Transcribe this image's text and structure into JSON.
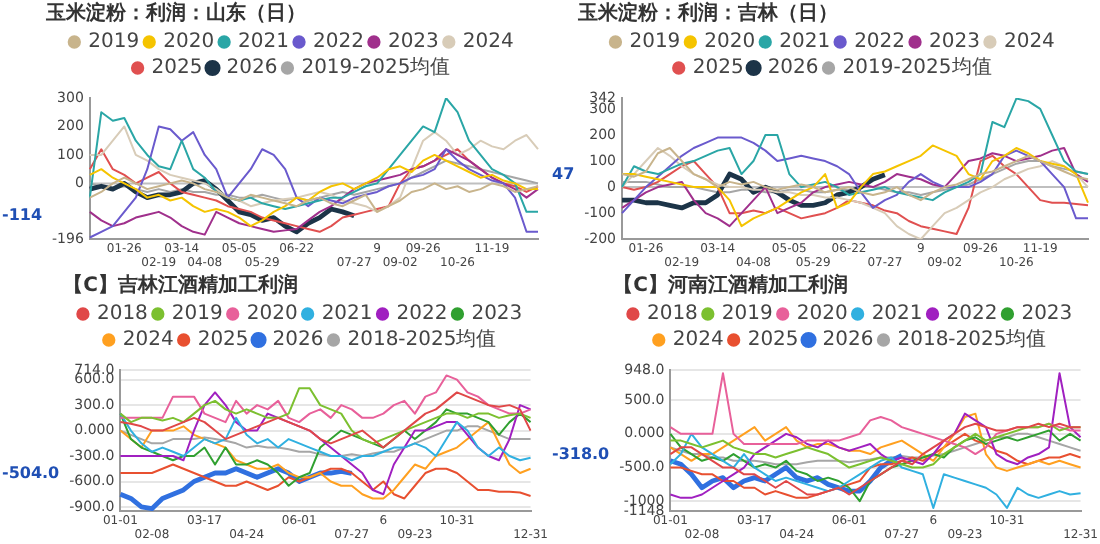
{
  "chart_data": [
    {
      "type": "line",
      "title": "玉米淀粉：利润：山东（日）",
      "legend": "top",
      "grid": false,
      "marker": "none",
      "categories": [
        null,
        null,
        null,
        "01-26",
        null,
        null,
        "02-19",
        null,
        "03-14",
        null,
        "04-08",
        null,
        null,
        "05-05",
        null,
        "05-29",
        null,
        null,
        "06-22",
        null,
        null,
        null,
        null,
        "07-27",
        null,
        "9",
        null,
        "09-02",
        null,
        "09-26",
        null,
        null,
        "10-26",
        null,
        null,
        "11-19",
        null,
        null,
        null,
        null
      ],
      "ylim": [
        -196,
        300
      ],
      "yticks": [
        300,
        200,
        100,
        0,
        -196
      ],
      "ref_lines": [
        {
          "axis": "y",
          "value": 0,
          "color": "#bfbfbf"
        }
      ],
      "annotations": [
        "-114"
      ],
      "series": [
        {
          "name": "2019",
          "color": "#c8b48c",
          "values": [
            -50,
            -30,
            0,
            20,
            0,
            -20,
            -10,
            0,
            10,
            0,
            -20,
            -30,
            -50,
            -60,
            -40,
            -50,
            -60,
            -70,
            -80,
            -60,
            -50,
            -70,
            -80,
            -60,
            -40,
            -100,
            -80,
            -60,
            -30,
            -20,
            0,
            -20,
            -10,
            -30,
            -20,
            0,
            -10,
            -30,
            -20,
            -10
          ]
        },
        {
          "name": "2020",
          "color": "#f5c400",
          "values": [
            30,
            50,
            20,
            0,
            -20,
            -50,
            -40,
            -60,
            -50,
            -80,
            -100,
            -90,
            -100,
            -120,
            -150,
            -130,
            -100,
            -80,
            -50,
            -60,
            -30,
            -10,
            0,
            -20,
            0,
            20,
            50,
            60,
            40,
            80,
            100,
            80,
            60,
            40,
            20,
            30,
            10,
            0,
            -20,
            -20
          ]
        },
        {
          "name": "2021",
          "color": "#2aa6a6",
          "values": [
            -50,
            250,
            220,
            230,
            150,
            100,
            60,
            50,
            150,
            50,
            20,
            -30,
            -50,
            -60,
            -50,
            -70,
            -80,
            -90,
            -80,
            -70,
            -60,
            -50,
            -50,
            -30,
            -10,
            0,
            50,
            100,
            150,
            200,
            180,
            300,
            250,
            150,
            100,
            50,
            30,
            0,
            -100,
            -100
          ]
        },
        {
          "name": "2022",
          "color": "#6a5acd",
          "values": [
            -190,
            -170,
            -150,
            -100,
            -50,
            50,
            200,
            190,
            150,
            180,
            100,
            50,
            -50,
            0,
            50,
            120,
            100,
            50,
            -50,
            -80,
            -50,
            -60,
            -70,
            -50,
            -40,
            -30,
            -10,
            0,
            20,
            30,
            50,
            120,
            80,
            50,
            30,
            10,
            0,
            -50,
            -170,
            -170
          ]
        },
        {
          "name": "2023",
          "color": "#a0308c",
          "values": [
            -100,
            -130,
            -150,
            -140,
            -120,
            -110,
            -100,
            -120,
            -150,
            -170,
            -180,
            -100,
            -120,
            -140,
            -150,
            -160,
            -170,
            -165,
            -160,
            -130,
            -100,
            -80,
            -50,
            -20,
            0,
            10,
            20,
            30,
            50,
            60,
            80,
            120,
            100,
            80,
            50,
            20,
            0,
            -20,
            -50,
            -20
          ]
        },
        {
          "name": "2024",
          "color": "#d8ccb8",
          "values": [
            100,
            100,
            150,
            200,
            100,
            80,
            50,
            30,
            20,
            10,
            0,
            -20,
            -50,
            -60,
            -80,
            -70,
            -60,
            -55,
            -50,
            -40,
            -30,
            -40,
            -60,
            -70,
            -80,
            -100,
            -80,
            -50,
            50,
            150,
            180,
            150,
            100,
            120,
            150,
            130,
            120,
            150,
            170,
            120
          ]
        },
        {
          "name": "2025",
          "color": "#e05050",
          "values": [
            50,
            120,
            50,
            30,
            0,
            20,
            40,
            0,
            -30,
            -40,
            -50,
            -60,
            -80,
            -90,
            -100,
            -120,
            -130,
            -140,
            -150,
            -160,
            -170,
            -150,
            -120,
            -110,
            -100,
            -90,
            -80,
            0,
            50,
            60,
            80,
            100,
            120,
            80,
            50,
            20,
            0,
            -10,
            -30,
            -10
          ]
        },
        {
          "name": "2026",
          "color": "#1c3448",
          "values": [
            -20,
            -10,
            -20,
            0,
            -30,
            -50,
            -40,
            -40,
            -30,
            0,
            10,
            -20,
            -60,
            -100,
            -110,
            -130,
            -120,
            -150,
            -170,
            -140,
            -120,
            -90,
            -100,
            -114,
            null,
            null,
            null,
            null,
            null,
            null,
            null,
            null,
            null,
            null,
            null,
            null,
            null,
            null,
            null,
            null
          ]
        },
        {
          "name": "2019-2025均值",
          "color": "#a6a6a6",
          "values": [
            0,
            -10,
            -20,
            -10,
            -20,
            -30,
            -20,
            -30,
            -20,
            -30,
            -30,
            -40,
            -40,
            -50,
            -50,
            -40,
            -50,
            -60,
            -50,
            -60,
            -50,
            -40,
            -30,
            -40,
            -30,
            -20,
            -10,
            0,
            20,
            40,
            60,
            80,
            70,
            60,
            50,
            40,
            30,
            20,
            10,
            0
          ]
        }
      ]
    },
    {
      "type": "line",
      "title": "玉米淀粉：利润：吉林（日）",
      "legend": "top",
      "grid": false,
      "marker": "none",
      "categories": [
        null,
        null,
        "01-26",
        null,
        null,
        "02-19",
        null,
        null,
        "03-14",
        null,
        null,
        "04-08",
        null,
        null,
        "05-05",
        null,
        "05-29",
        null,
        null,
        "06-22",
        null,
        null,
        "07-27",
        null,
        null,
        "9",
        null,
        "09-02",
        null,
        null,
        "09-26",
        null,
        null,
        "10-26",
        null,
        "11-19",
        null,
        null,
        null,
        null
      ],
      "ylim": [
        -200,
        342
      ],
      "yticks": [
        342,
        300,
        200,
        100,
        0,
        -100,
        -200
      ],
      "ref_lines": [
        {
          "axis": "y",
          "value": 0,
          "color": "#bfbfbf"
        }
      ],
      "annotations": [
        "47"
      ],
      "series": [
        {
          "name": "2019",
          "color": "#c8b48c",
          "values": [
            50,
            40,
            60,
            130,
            150,
            100,
            50,
            30,
            0,
            20,
            10,
            20,
            0,
            -10,
            0,
            10,
            0,
            -20,
            -10,
            0,
            -20,
            -30,
            -20,
            0,
            -30,
            -50,
            -20,
            0,
            10,
            30,
            50,
            60,
            80,
            100,
            120,
            100,
            80,
            60,
            40,
            30
          ]
        },
        {
          "name": "2020",
          "color": "#f5c400",
          "values": [
            50,
            50,
            40,
            30,
            20,
            10,
            0,
            0,
            0,
            -50,
            -150,
            -120,
            -100,
            -80,
            -50,
            -20,
            0,
            50,
            -80,
            -60,
            0,
            50,
            60,
            80,
            100,
            120,
            160,
            140,
            120,
            50,
            30,
            100,
            120,
            150,
            130,
            100,
            90,
            80,
            50,
            -60
          ]
        },
        {
          "name": "2021",
          "color": "#2aa6a6",
          "values": [
            0,
            80,
            60,
            50,
            70,
            90,
            100,
            120,
            140,
            150,
            50,
            100,
            200,
            200,
            50,
            0,
            10,
            20,
            0,
            -30,
            -20,
            -10,
            0,
            -20,
            -30,
            -40,
            -50,
            -20,
            0,
            20,
            50,
            250,
            230,
            340,
            330,
            300,
            200,
            100,
            60,
            50
          ]
        },
        {
          "name": "2022",
          "color": "#6a5acd",
          "values": [
            -100,
            -50,
            0,
            40,
            80,
            120,
            150,
            170,
            190,
            190,
            190,
            170,
            140,
            100,
            110,
            120,
            110,
            100,
            80,
            50,
            -20,
            -80,
            -50,
            -30,
            20,
            50,
            20,
            0,
            0,
            0,
            20,
            50,
            120,
            140,
            120,
            100,
            50,
            0,
            -120,
            -120
          ]
        },
        {
          "name": "2023",
          "color": "#a0308c",
          "values": [
            -80,
            -50,
            -20,
            0,
            10,
            20,
            -50,
            -100,
            -120,
            -150,
            -100,
            -50,
            0,
            -100,
            -80,
            -60,
            -20,
            0,
            10,
            20,
            10,
            0,
            20,
            50,
            40,
            30,
            10,
            0,
            50,
            100,
            110,
            130,
            120,
            100,
            110,
            120,
            140,
            150,
            50,
            20
          ]
        },
        {
          "name": "2024",
          "color": "#d8ccb8",
          "values": [
            0,
            50,
            100,
            150,
            120,
            80,
            50,
            30,
            10,
            0,
            0,
            -10,
            -10,
            -20,
            -20,
            -30,
            -30,
            -40,
            -40,
            -50,
            -60,
            -80,
            -100,
            -150,
            -180,
            -200,
            -150,
            -100,
            -80,
            -50,
            -20,
            0,
            30,
            50,
            70,
            80,
            100,
            80,
            50,
            0
          ]
        },
        {
          "name": "2025",
          "color": "#e05050",
          "values": [
            0,
            -10,
            0,
            20,
            50,
            80,
            100,
            50,
            0,
            -100,
            -100,
            -90,
            -100,
            -80,
            -100,
            -120,
            -110,
            -100,
            -80,
            -50,
            -60,
            -70,
            -90,
            -100,
            -130,
            -150,
            -160,
            -170,
            -180,
            -80,
            100,
            120,
            80,
            50,
            0,
            -50,
            -60,
            -60,
            -65,
            -70
          ]
        },
        {
          "name": "2026",
          "color": "#1c3448",
          "values": [
            -50,
            -50,
            -60,
            -60,
            -70,
            -80,
            -60,
            -60,
            -30,
            50,
            30,
            -20,
            0,
            -20,
            -50,
            -70,
            -70,
            -60,
            -30,
            -20,
            0,
            30,
            47,
            null,
            null,
            null,
            null,
            null,
            null,
            null,
            null,
            null,
            null,
            null,
            null,
            null,
            null,
            null,
            null,
            null
          ]
        },
        {
          "name": "2019-2025均值",
          "color": "#a6a6a6",
          "values": [
            20,
            20,
            20,
            10,
            0,
            0,
            0,
            -10,
            -20,
            -20,
            -10,
            -10,
            -20,
            -20,
            -10,
            -10,
            -20,
            -20,
            -10,
            -10,
            0,
            0,
            -10,
            -20,
            -20,
            -30,
            -20,
            -10,
            0,
            10,
            30,
            50,
            70,
            90,
            100,
            100,
            80,
            70,
            60,
            50
          ]
        }
      ]
    },
    {
      "type": "line",
      "title": "【C】吉林江酒精加工利润",
      "legend": "top",
      "grid": "y",
      "marker": "none",
      "categories": [
        "01-01",
        null,
        null,
        "02-08",
        null,
        null,
        null,
        null,
        "03-17",
        null,
        null,
        null,
        "04-24",
        null,
        null,
        null,
        null,
        "06-01",
        null,
        null,
        null,
        null,
        "07-27",
        null,
        null,
        "6",
        null,
        null,
        "09-23",
        null,
        null,
        null,
        "10-31",
        null,
        null,
        null,
        null,
        null,
        null,
        "12-31"
      ],
      "ylim": [
        -950,
        714
      ],
      "yticks": [
        {
          "value": 714,
          "label": "714.0"
        },
        {
          "value": 600,
          "label": "600.0"
        },
        {
          "value": 300,
          "label": "300.0"
        },
        {
          "value": 0,
          "label": "0.000"
        },
        {
          "value": -300,
          "label": "-300.0"
        },
        {
          "value": -600,
          "label": "-600.0"
        },
        {
          "value": -900,
          "label": "-900.0"
        }
      ],
      "annotations": [
        "-504.0"
      ],
      "series": [
        {
          "name": "2018",
          "color": "#e04848",
          "values": [
            100,
            80,
            50,
            0,
            0,
            50,
            100,
            150,
            100,
            0,
            -100,
            -50,
            0,
            50,
            100,
            150,
            100,
            50,
            0,
            -100,
            -150,
            -100,
            -50,
            0,
            -100,
            -200,
            -100,
            0,
            100,
            200,
            250,
            350,
            450,
            400,
            350,
            300,
            280,
            300,
            250,
            0
          ]
        },
        {
          "name": "2019",
          "color": "#7cc030",
          "values": [
            200,
            100,
            150,
            150,
            120,
            150,
            100,
            200,
            300,
            350,
            250,
            200,
            250,
            200,
            150,
            150,
            200,
            500,
            500,
            300,
            250,
            200,
            0,
            -100,
            -150,
            -100,
            -50,
            0,
            50,
            100,
            150,
            200,
            200,
            150,
            200,
            200,
            150,
            180,
            200,
            150
          ]
        },
        {
          "name": "2020",
          "color": "#e8609a",
          "values": [
            150,
            150,
            150,
            150,
            150,
            400,
            400,
            400,
            200,
            150,
            100,
            350,
            200,
            300,
            250,
            350,
            150,
            100,
            200,
            250,
            150,
            300,
            250,
            150,
            150,
            200,
            300,
            350,
            200,
            400,
            450,
            650,
            600,
            450,
            400,
            300,
            250,
            200,
            200,
            250
          ]
        },
        {
          "name": "2021",
          "color": "#30b0e0",
          "values": [
            200,
            0,
            -150,
            -250,
            -200,
            -250,
            -300,
            -200,
            -100,
            -150,
            -100,
            150,
            -50,
            -150,
            -100,
            -200,
            -100,
            -150,
            -200,
            -250,
            -300,
            -300,
            -350,
            -300,
            -300,
            -250,
            -200,
            -200,
            -150,
            -200,
            -300,
            -100,
            100,
            0,
            -200,
            -300,
            -200,
            -300,
            -350,
            -320
          ]
        },
        {
          "name": "2022",
          "color": "#a020c0",
          "values": [
            -300,
            -300,
            -300,
            -300,
            -300,
            -300,
            -350,
            0,
            300,
            450,
            300,
            100,
            0,
            0,
            200,
            150,
            100,
            50,
            0,
            -100,
            -200,
            -300,
            -400,
            -500,
            -700,
            -750,
            -400,
            -200,
            0,
            0,
            50,
            100,
            100,
            -50,
            -200,
            -300,
            -350,
            -100,
            300,
            250
          ]
        },
        {
          "name": "2023",
          "color": "#30a030",
          "values": [
            200,
            -100,
            -200,
            -250,
            -300,
            -350,
            -300,
            -300,
            -200,
            -400,
            -200,
            -400,
            -400,
            -350,
            -400,
            -500,
            -650,
            -550,
            -500,
            -200,
            -100,
            0,
            -50,
            -100,
            -150,
            -200,
            -100,
            0,
            -100,
            0,
            100,
            250,
            200,
            200,
            150,
            100,
            -50,
            100,
            200,
            100
          ]
        },
        {
          "name": "2024",
          "color": "#ffa020",
          "values": [
            0,
            -100,
            -200,
            0,
            0,
            0,
            50,
            -50,
            -100,
            -150,
            -200,
            -350,
            -400,
            -450,
            -450,
            -400,
            -500,
            -550,
            -550,
            -500,
            -600,
            -650,
            -650,
            -750,
            -800,
            -800,
            -700,
            -550,
            -400,
            -450,
            -300,
            -250,
            -200,
            -100,
            0,
            100,
            -150,
            -400,
            -500,
            -450
          ]
        },
        {
          "name": "2025",
          "color": "#e85030",
          "values": [
            -500,
            -500,
            -500,
            -500,
            -450,
            -400,
            -450,
            -500,
            -550,
            -600,
            -650,
            -650,
            -600,
            -650,
            -700,
            -650,
            -550,
            -600,
            -550,
            -500,
            -450,
            -450,
            -500,
            -600,
            -700,
            -600,
            -750,
            -800,
            -650,
            -500,
            -450,
            -450,
            -500,
            -600,
            -700,
            -700,
            -720,
            -720,
            -730,
            -770
          ]
        },
        {
          "name": "2026",
          "color": "#3070e0",
          "values": [
            -750,
            -800,
            -900,
            -920,
            -800,
            -750,
            -700,
            -600,
            -550,
            -500,
            -500,
            -450,
            -500,
            -550,
            -500,
            -450,
            -500,
            -600,
            -550,
            -500,
            -500,
            -480,
            -504,
            null,
            null,
            null,
            null,
            null,
            null,
            null,
            null,
            null,
            null,
            null,
            null,
            null,
            null,
            null,
            null,
            null
          ]
        },
        {
          "name": "2018-2025均值",
          "color": "#a6a6a6",
          "values": [
            0,
            -50,
            -100,
            -150,
            -150,
            -100,
            -100,
            -100,
            -80,
            -100,
            -120,
            -150,
            -200,
            -180,
            -200,
            -200,
            -220,
            -250,
            -250,
            -280,
            -300,
            -300,
            -280,
            -300,
            -270,
            -250,
            -250,
            -200,
            -150,
            -100,
            -50,
            0,
            0,
            50,
            50,
            0,
            -50,
            -100,
            -100,
            -100
          ]
        }
      ]
    },
    {
      "type": "line",
      "title": "【C】河南江酒精加工利润",
      "legend": "top",
      "grid": "y",
      "marker": "none",
      "categories": [
        "01-01",
        null,
        null,
        "02-08",
        null,
        null,
        null,
        null,
        "03-17",
        null,
        null,
        null,
        "04-24",
        null,
        null,
        null,
        null,
        "06-01",
        null,
        null,
        null,
        null,
        "07-27",
        null,
        null,
        "6",
        null,
        null,
        "09-23",
        null,
        null,
        null,
        "10-31",
        null,
        null,
        null,
        null,
        null,
        null,
        "12-31"
      ],
      "ylim": [
        -1148,
        948
      ],
      "yticks": [
        {
          "value": 948,
          "label": "948.0"
        },
        {
          "value": 500,
          "label": "500.0"
        },
        {
          "value": 0,
          "label": "0.000"
        },
        {
          "value": -500,
          "label": "-500.0"
        },
        -1000,
        -1148
      ],
      "annotations": [
        "-318.0"
      ],
      "series": [
        {
          "name": "2018",
          "color": "#e04848",
          "values": [
            -300,
            -200,
            -200,
            -300,
            -400,
            -500,
            -500,
            -600,
            -600,
            -700,
            -800,
            -700,
            -800,
            -900,
            -900,
            -850,
            -800,
            -900,
            -800,
            -700,
            -600,
            -500,
            -400,
            -450,
            -300,
            -200,
            -100,
            0,
            100,
            150,
            100,
            50,
            50,
            100,
            100,
            150,
            100,
            150,
            100,
            100
          ]
        },
        {
          "name": "2019",
          "color": "#7cc030",
          "values": [
            -100,
            -100,
            -150,
            -200,
            -150,
            -100,
            -200,
            -250,
            -300,
            -300,
            -350,
            -300,
            -250,
            -200,
            -250,
            -300,
            -400,
            -500,
            -450,
            -400,
            -350,
            -400,
            -450,
            -500,
            -500,
            -450,
            -300,
            -200,
            -100,
            0,
            -100,
            -50,
            0,
            50,
            100,
            100,
            150,
            50,
            100,
            100
          ]
        },
        {
          "name": "2020",
          "color": "#e8609a",
          "values": [
            100,
            0,
            0,
            0,
            0,
            900,
            0,
            -150,
            -150,
            -150,
            -150,
            -150,
            -150,
            -100,
            -100,
            -100,
            -100,
            -50,
            0,
            200,
            250,
            200,
            100,
            50,
            0,
            -50,
            -100,
            -150,
            -200,
            -300,
            -200,
            0,
            50,
            100,
            100,
            100,
            150,
            100,
            50,
            50
          ]
        },
        {
          "name": "2021",
          "color": "#30b0e0",
          "values": [
            -450,
            -300,
            0,
            -200,
            -300,
            -400,
            -500,
            -300,
            -500,
            -600,
            -700,
            -650,
            -700,
            -750,
            -800,
            -850,
            -800,
            -700,
            -600,
            -500,
            -400,
            -350,
            -500,
            -550,
            -600,
            -1100,
            -600,
            -650,
            -700,
            -750,
            -800,
            -900,
            -1100,
            -800,
            -900,
            -950,
            -900,
            -850,
            -900,
            -880
          ]
        },
        {
          "name": "2022",
          "color": "#a020c0",
          "values": [
            -900,
            -950,
            -950,
            -900,
            -800,
            -700,
            -600,
            -500,
            -300,
            -200,
            -100,
            0,
            -50,
            -150,
            -200,
            -100,
            -200,
            -250,
            -200,
            -150,
            -300,
            -400,
            -350,
            -400,
            -450,
            -300,
            -100,
            0,
            300,
            200,
            100,
            -300,
            -400,
            -450,
            -350,
            -300,
            -200,
            900,
            100,
            -50
          ]
        },
        {
          "name": "2023",
          "color": "#30a030",
          "values": [
            0,
            -200,
            -300,
            -400,
            -350,
            -400,
            -300,
            -400,
            -500,
            -450,
            -500,
            -400,
            -550,
            -600,
            -700,
            -650,
            -700,
            -800,
            -1000,
            -700,
            -600,
            -500,
            -450,
            -400,
            -350,
            -300,
            -350,
            -200,
            -100,
            -50,
            -150,
            -100,
            -50,
            -100,
            -50,
            0,
            50,
            -100,
            0,
            -100
          ]
        },
        {
          "name": "2024",
          "color": "#ffa020",
          "values": [
            -200,
            -300,
            -400,
            -300,
            -300,
            -200,
            -100,
            0,
            100,
            -100,
            0,
            100,
            -100,
            -200,
            -150,
            -150,
            -200,
            -250,
            -250,
            -300,
            -200,
            -150,
            -100,
            -200,
            -300,
            -400,
            -200,
            0,
            250,
            300,
            -300,
            -500,
            -550,
            -500,
            -450,
            -400,
            -450,
            -400,
            -450,
            -500
          ]
        },
        {
          "name": "2025",
          "color": "#e85030",
          "values": [
            -500,
            -500,
            -550,
            -600,
            -600,
            -700,
            -700,
            -800,
            -800,
            -900,
            -850,
            -900,
            -950,
            -950,
            -900,
            -850,
            -800,
            -750,
            -700,
            -500,
            -450,
            -450,
            -400,
            -350,
            -400,
            -300,
            -200,
            -100,
            0,
            -100,
            -150,
            -250,
            -300,
            -400,
            -450,
            -400,
            -350,
            -350,
            -300,
            -350
          ]
        },
        {
          "name": "2026",
          "color": "#3070e0",
          "values": [
            -400,
            -450,
            -600,
            -800,
            -700,
            -650,
            -800,
            -700,
            -650,
            -700,
            -600,
            -500,
            -650,
            -700,
            -650,
            -750,
            -800,
            -850,
            -850,
            -700,
            -500,
            -400,
            -318,
            null,
            null,
            null,
            null,
            null,
            null,
            null,
            null,
            null,
            null,
            null,
            null,
            null,
            null,
            null,
            null,
            null
          ]
        },
        {
          "name": "2018-2025均值",
          "color": "#a6a6a6",
          "values": [
            -200,
            -250,
            -300,
            -300,
            -350,
            -350,
            -400,
            -400,
            -400,
            -420,
            -450,
            -450,
            -450,
            -420,
            -400,
            -400,
            -400,
            -420,
            -400,
            -380,
            -350,
            -350,
            -330,
            -350,
            -350,
            -320,
            -300,
            -250,
            -200,
            -150,
            -100,
            -50,
            -50,
            0,
            0,
            -50,
            -100,
            -150,
            -200,
            -250
          ]
        }
      ]
    }
  ]
}
